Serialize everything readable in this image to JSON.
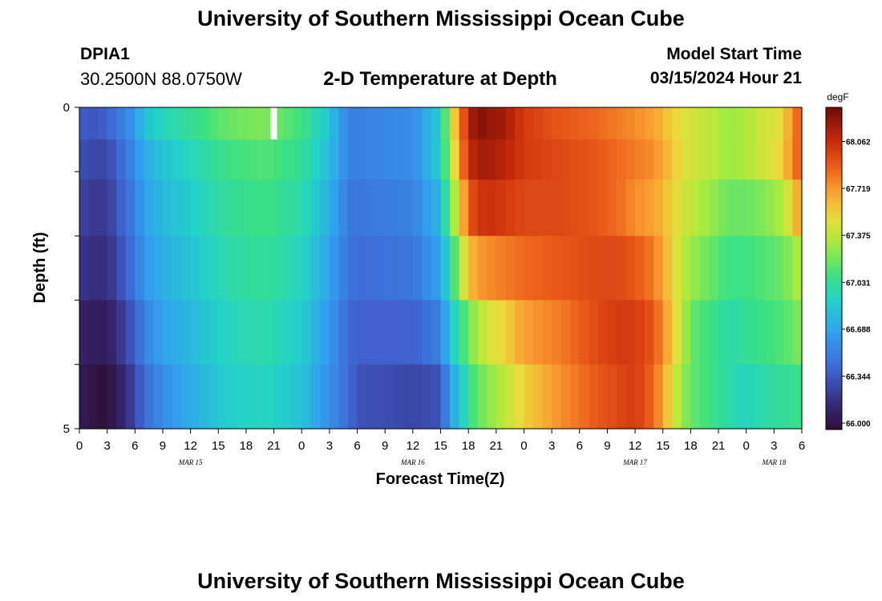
{
  "header": {
    "title": "University of Southern Mississippi Ocean Cube",
    "station_id": "DPIA1",
    "coordinates": "30.2500N  88.0750W",
    "plot_title": "2-D Temperature at Depth",
    "model_start_label": "Model Start Time",
    "model_start_value": "03/15/2024 Hour 21"
  },
  "footer": {
    "title": "University of Southern Mississippi Ocean Cube"
  },
  "chart_data": {
    "type": "heatmap",
    "title": "2-D Temperature at Depth",
    "xlabel": "Forecast Time(Z)",
    "ylabel": "Depth (ft)",
    "x_range_hours": [
      0,
      78
    ],
    "y_range_ft": [
      0,
      5
    ],
    "y_ticks": [
      "0",
      "5"
    ],
    "x_tick_labels": [
      "0",
      "3",
      "6",
      "9",
      "12",
      "15",
      "18",
      "21",
      "0",
      "3",
      "6",
      "9",
      "12",
      "15",
      "18",
      "21",
      "0",
      "3",
      "6",
      "9",
      "12",
      "15",
      "18",
      "21",
      "0",
      "3",
      "6"
    ],
    "date_labels": [
      {
        "text": "MAR 15",
        "hour": 12
      },
      {
        "text": "MAR 16",
        "hour": 36
      },
      {
        "text": "MAR 17",
        "hour": 60
      },
      {
        "text": "MAR 18",
        "hour": 75
      }
    ],
    "colorbar": {
      "unit": "degF",
      "min": 66.0,
      "max": 68.3,
      "tick_values": [
        "66.000",
        "66.344",
        "66.688",
        "67.031",
        "67.375",
        "67.719",
        "68.062"
      ]
    },
    "depth_rows_ft": [
      0.25,
      0.75,
      1.5,
      2.5,
      3.5,
      4.5
    ],
    "time_keyframes_hours": [
      0,
      1,
      3,
      4,
      6,
      7,
      9,
      12,
      16,
      20,
      24,
      27,
      28,
      29,
      30,
      36,
      39,
      40,
      41,
      42,
      43,
      44,
      46,
      48,
      52,
      56,
      58,
      60,
      62,
      64,
      65,
      66,
      68,
      70,
      72,
      74,
      76,
      77,
      78
    ],
    "temperature_keyframes_degF": [
      [
        66.4,
        66.35,
        66.4,
        66.5,
        66.65,
        66.85,
        66.95,
        67.05,
        67.2,
        67.25,
        67.1,
        66.85,
        66.7,
        66.55,
        66.55,
        66.6,
        66.9,
        67.4,
        67.75,
        68.1,
        68.25,
        68.2,
        68.15,
        68.0,
        67.9,
        67.85,
        67.8,
        67.75,
        67.7,
        67.55,
        67.5,
        67.45,
        67.4,
        67.3,
        67.35,
        67.45,
        67.5,
        67.8,
        67.9
      ],
      [
        66.35,
        66.3,
        66.3,
        66.4,
        66.6,
        66.75,
        66.85,
        66.95,
        67.1,
        67.15,
        67.05,
        66.8,
        66.7,
        66.55,
        66.55,
        66.6,
        66.9,
        67.35,
        67.7,
        68.05,
        68.15,
        68.15,
        68.1,
        68.0,
        67.95,
        67.9,
        67.85,
        67.8,
        67.75,
        67.6,
        67.5,
        67.45,
        67.4,
        67.3,
        67.35,
        67.45,
        67.55,
        67.8,
        67.9
      ],
      [
        66.3,
        66.25,
        66.25,
        66.35,
        66.55,
        66.7,
        66.8,
        66.9,
        67.05,
        67.1,
        67.0,
        66.75,
        66.65,
        66.5,
        66.5,
        66.55,
        66.8,
        67.2,
        67.5,
        67.9,
        68.0,
        68.05,
        68.0,
        67.95,
        67.95,
        67.9,
        67.85,
        67.75,
        67.7,
        67.55,
        67.45,
        67.4,
        67.3,
        67.2,
        67.2,
        67.25,
        67.35,
        67.55,
        67.75
      ],
      [
        66.25,
        66.2,
        66.2,
        66.3,
        66.5,
        66.65,
        66.75,
        66.85,
        67.0,
        67.05,
        66.95,
        66.7,
        66.6,
        66.5,
        66.45,
        66.5,
        66.7,
        67.0,
        67.3,
        67.6,
        67.7,
        67.75,
        67.8,
        67.85,
        67.9,
        67.95,
        67.95,
        67.9,
        67.8,
        67.55,
        67.4,
        67.3,
        67.2,
        67.1,
        67.1,
        67.15,
        67.2,
        67.3,
        67.35
      ],
      [
        66.15,
        66.1,
        66.1,
        66.2,
        66.4,
        66.55,
        66.7,
        66.8,
        66.95,
        67.0,
        66.9,
        66.65,
        66.55,
        66.45,
        66.4,
        66.4,
        66.55,
        66.85,
        67.05,
        67.2,
        67.35,
        67.45,
        67.55,
        67.7,
        67.8,
        67.95,
        68.0,
        68.0,
        67.9,
        67.6,
        67.4,
        67.2,
        67.1,
        67.0,
        67.05,
        67.1,
        67.15,
        67.2,
        67.25
      ],
      [
        66.1,
        66.05,
        66.0,
        66.1,
        66.3,
        66.45,
        66.6,
        66.75,
        66.9,
        66.95,
        66.85,
        66.6,
        66.55,
        66.45,
        66.35,
        66.3,
        66.35,
        66.7,
        66.85,
        67.05,
        67.2,
        67.25,
        67.4,
        67.55,
        67.75,
        67.9,
        67.95,
        68.0,
        67.85,
        67.5,
        67.3,
        67.2,
        67.1,
        67.0,
        66.95,
        67.0,
        67.05,
        67.05,
        67.1
      ]
    ],
    "missing_value_marker": {
      "hour": 21,
      "depth_row": 0
    }
  }
}
